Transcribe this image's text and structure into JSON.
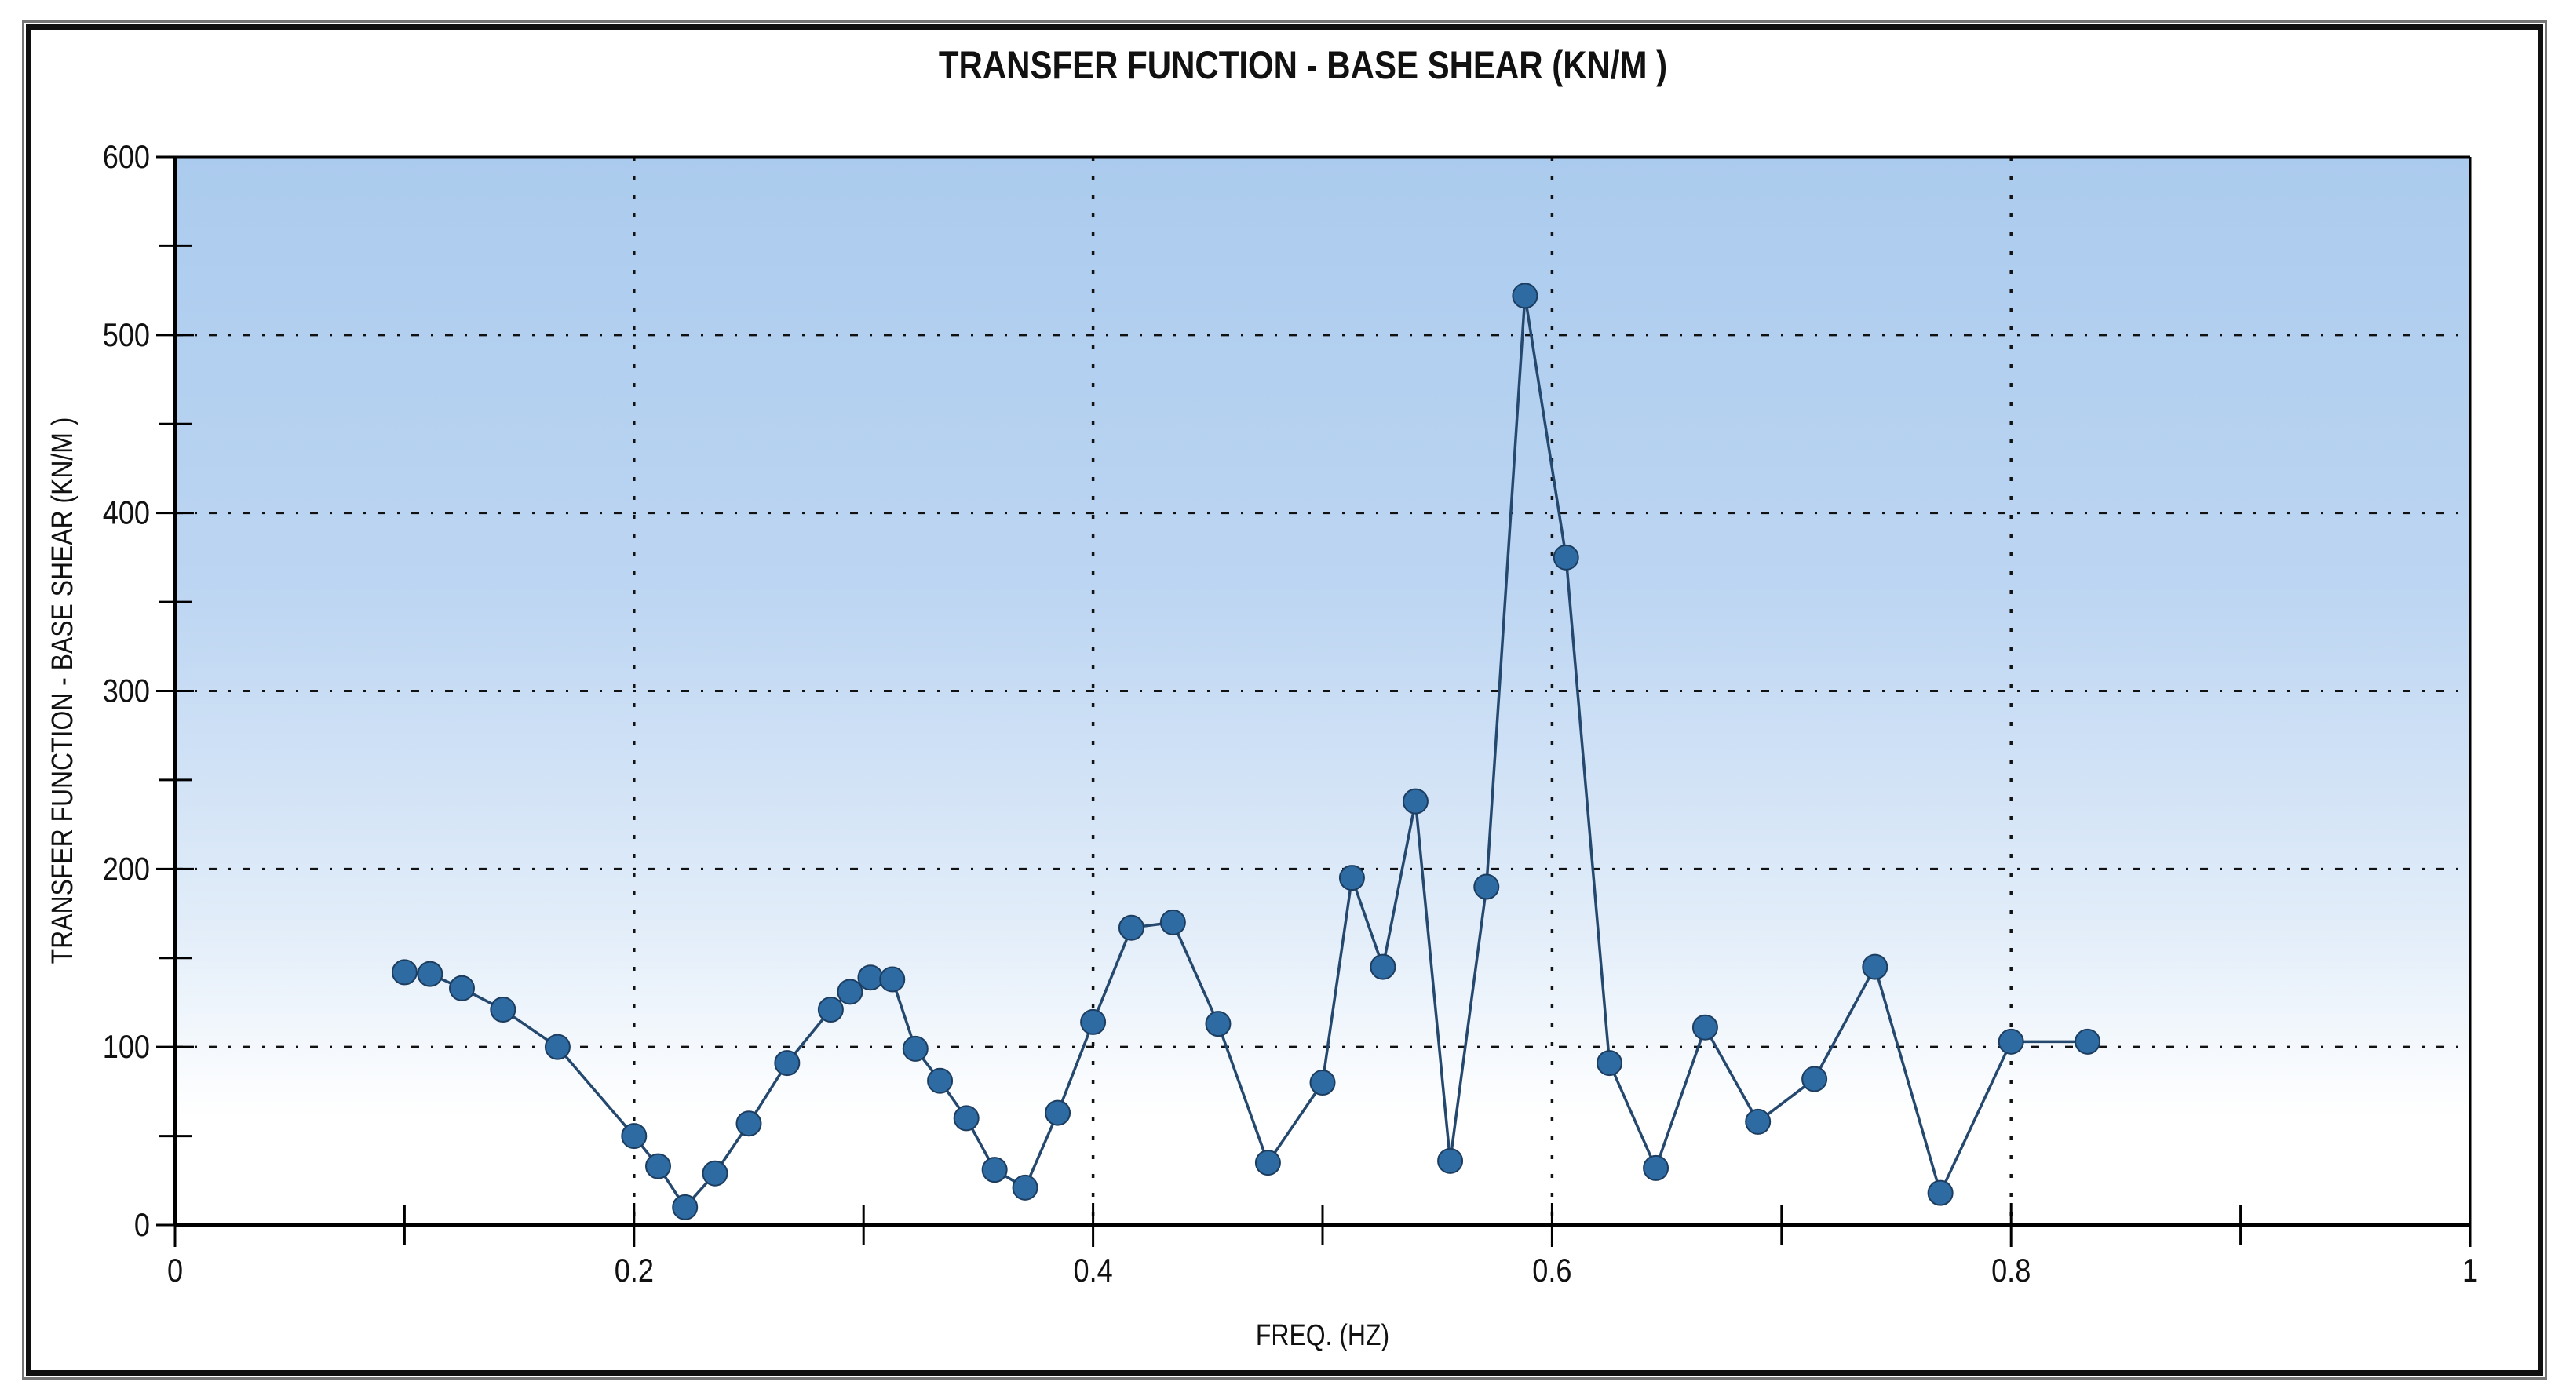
{
  "window": {
    "kind": "plot-screenshot",
    "frame_border_outer_color": "#767676",
    "frame_border_inner_color": "#101010"
  },
  "chart_data": {
    "type": "line",
    "title": "TRANSFER FUNCTION - BASE SHEAR (KN/M )",
    "xlabel": "FREQ. (HZ)",
    "ylabel": "TRANSFER FUNCTION - BASE SHEAR (KN/M )",
    "xlim": [
      0,
      1
    ],
    "ylim": [
      0,
      600
    ],
    "grid": "dotted",
    "legend_position": "none",
    "x_major_ticks": [
      0,
      0.2,
      0.4,
      0.6,
      0.8,
      1
    ],
    "x_major_tick_labels": [
      "0",
      "0.2",
      "0.4",
      "0.6",
      "0.8",
      "1"
    ],
    "x_minor_ticks": [
      0.1,
      0.3,
      0.5,
      0.7,
      0.9
    ],
    "y_major_ticks": [
      0,
      100,
      200,
      300,
      400,
      500,
      600
    ],
    "y_major_tick_labels": [
      "0",
      "100",
      "200",
      "300",
      "400",
      "500",
      "600"
    ],
    "y_minor_ticks": [
      50,
      150,
      250,
      350,
      450,
      550
    ],
    "h_gridlines": [
      100,
      200,
      300,
      400,
      500
    ],
    "v_gridlines": [
      0.2,
      0.4,
      0.6,
      0.8
    ],
    "plot_bg_gradient_top": "#abcbee",
    "plot_bg_gradient_mid": "#cfe2f6",
    "plot_bg_gradient_bottom": "#ffffff",
    "series": [
      {
        "name": "transfer-function-base-shear",
        "marker": "circle",
        "marker_color": "#2e6ba3",
        "line_color": "#25486e",
        "x": [
          0.1,
          0.1111,
          0.125,
          0.1429,
          0.1667,
          0.2,
          0.2105,
          0.2222,
          0.2353,
          0.25,
          0.2667,
          0.2857,
          0.2941,
          0.303,
          0.3125,
          0.3226,
          0.3333,
          0.3448,
          0.3571,
          0.3704,
          0.3846,
          0.4,
          0.4167,
          0.4348,
          0.4545,
          0.4762,
          0.5,
          0.5128,
          0.5263,
          0.5405,
          0.5556,
          0.5714,
          0.5882,
          0.6061,
          0.625,
          0.6452,
          0.6667,
          0.6897,
          0.7143,
          0.7407,
          0.7692,
          0.8,
          0.8333
        ],
        "y": [
          142,
          141,
          133,
          121,
          100,
          50,
          33,
          10,
          29,
          57,
          91,
          121,
          131,
          139,
          138,
          99,
          81,
          60,
          31,
          21,
          63,
          114,
          167,
          170,
          113,
          35,
          80,
          195,
          145,
          238,
          36,
          190,
          522,
          375,
          91,
          32,
          111,
          58,
          82,
          145,
          18,
          103,
          103
        ]
      }
    ]
  }
}
